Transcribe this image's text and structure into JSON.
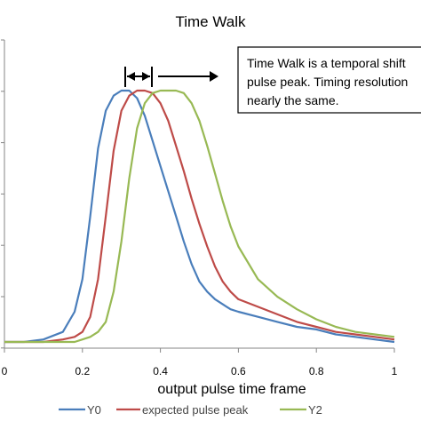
{
  "chart_data": {
    "type": "line",
    "title": "Time Walk",
    "xlabel": "output pulse time frame",
    "ylabel": "",
    "xlim": [
      0,
      1
    ],
    "ylim": [
      0,
      1
    ],
    "x_ticks": [
      "0",
      "0.2",
      "0.4",
      "0.6",
      "0.8",
      "1"
    ],
    "grid": false,
    "legend_position": "bottom",
    "x": [
      0.0,
      0.05,
      0.1,
      0.15,
      0.18,
      0.2,
      0.22,
      0.24,
      0.26,
      0.28,
      0.3,
      0.32,
      0.34,
      0.36,
      0.38,
      0.4,
      0.42,
      0.44,
      0.46,
      0.48,
      0.5,
      0.52,
      0.54,
      0.56,
      0.58,
      0.6,
      0.65,
      0.7,
      0.75,
      0.8,
      0.85,
      0.9,
      0.95,
      1.0
    ],
    "series": [
      {
        "name": "Y0",
        "color": "#4a7ebb",
        "values": [
          0.0,
          0.0,
          0.01,
          0.04,
          0.12,
          0.25,
          0.5,
          0.77,
          0.92,
          0.98,
          1.0,
          1.0,
          0.97,
          0.9,
          0.8,
          0.7,
          0.6,
          0.5,
          0.4,
          0.31,
          0.24,
          0.2,
          0.17,
          0.15,
          0.13,
          0.12,
          0.1,
          0.08,
          0.06,
          0.05,
          0.03,
          0.02,
          0.01,
          0.0
        ]
      },
      {
        "name": "expected pulse peak",
        "color": "#be4b48",
        "values": [
          0.0,
          0.0,
          0.0,
          0.01,
          0.02,
          0.04,
          0.1,
          0.25,
          0.5,
          0.76,
          0.92,
          0.98,
          1.0,
          1.0,
          0.99,
          0.95,
          0.88,
          0.78,
          0.68,
          0.57,
          0.47,
          0.38,
          0.3,
          0.24,
          0.2,
          0.17,
          0.14,
          0.11,
          0.08,
          0.06,
          0.04,
          0.03,
          0.02,
          0.01
        ]
      },
      {
        "name": "Y2",
        "color": "#98b954",
        "values": [
          0.0,
          0.0,
          0.0,
          0.0,
          0.0,
          0.01,
          0.02,
          0.04,
          0.08,
          0.2,
          0.4,
          0.65,
          0.85,
          0.95,
          0.99,
          1.0,
          1.0,
          1.0,
          0.99,
          0.95,
          0.88,
          0.78,
          0.67,
          0.56,
          0.46,
          0.38,
          0.25,
          0.18,
          0.13,
          0.09,
          0.06,
          0.04,
          0.03,
          0.02
        ]
      }
    ],
    "annotations": [
      "Time Walk is a temporal shift",
      "pulse peak. Timing resolution",
      "nearly the same."
    ]
  }
}
